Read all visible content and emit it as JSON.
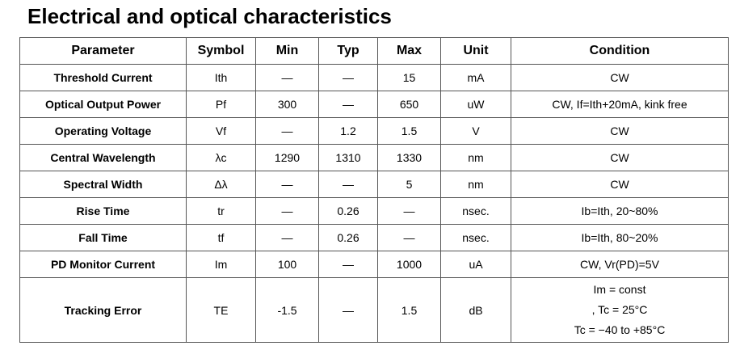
{
  "header": {
    "title": "Electrical and optical characteristics"
  },
  "table": {
    "columns": [
      "Parameter",
      "Symbol",
      "Min",
      "Typ",
      "Max",
      "Unit",
      "Condition"
    ],
    "rows": [
      [
        "Threshold Current",
        "Ith",
        "—",
        "—",
        "15",
        "mA",
        "CW"
      ],
      [
        "Optical Output Power",
        "Pf",
        "300",
        "—",
        "650",
        "uW",
        "CW, If=Ith+20mA, kink free"
      ],
      [
        "Operating Voltage",
        "Vf",
        "—",
        "1.2",
        "1.5",
        "V",
        "CW"
      ],
      [
        "Central Wavelength",
        "λc",
        "1290",
        "1310",
        "1330",
        "nm",
        "CW"
      ],
      [
        "Spectral Width",
        "Δλ",
        "—",
        "—",
        "5",
        "nm",
        "CW"
      ],
      [
        "Rise Time",
        "tr",
        "—",
        "0.26",
        "—",
        "nsec.",
        "Ib=Ith, 20~80%"
      ],
      [
        "Fall Time",
        "tf",
        "—",
        "0.26",
        "—",
        "nsec.",
        "Ib=Ith, 80~20%"
      ],
      [
        "PD Monitor Current",
        "Im",
        "100",
        "—",
        "1000",
        "uA",
        "CW, Vr(PD)=5V"
      ],
      [
        "Tracking Error",
        "TE",
        "-1.5",
        "—",
        "1.5",
        "dB",
        [
          "Im = const",
          ", Tc = 25°C",
          "Tc = −40 to +85°C"
        ]
      ]
    ]
  }
}
